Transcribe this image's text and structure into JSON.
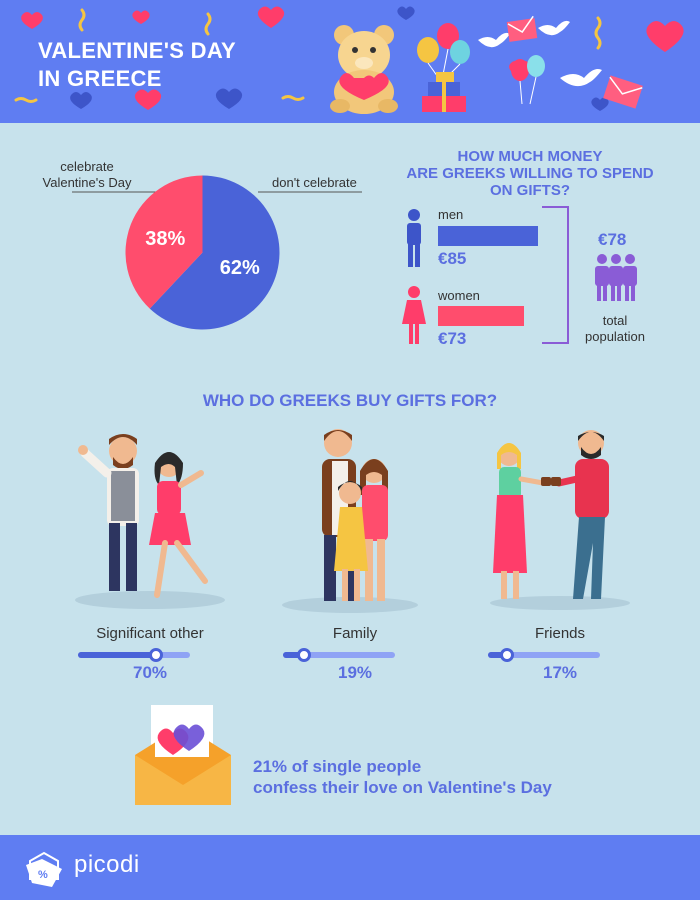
{
  "header": {
    "title_line1": "VALENTINE'S DAY",
    "title_line2": "IN GREECE",
    "background": "#5f7df2",
    "decor_icons": [
      "heart-icon",
      "confetti-icon",
      "teddy-bear-icon",
      "balloon-icon",
      "gift-icon",
      "dove-icon",
      "envelope-icon"
    ]
  },
  "chart_data": {
    "type": "pie",
    "slices": [
      {
        "label": "don't celebrate",
        "value": 62,
        "display": "62%",
        "color": "#4a63d8"
      },
      {
        "label": "celebrate Valentine's Day",
        "value": 38,
        "display": "38%",
        "color": "#ff4d6d"
      }
    ],
    "label_celebrate_line1": "celebrate",
    "label_celebrate_line2": "Valentine's Day",
    "label_dont": "don't celebrate"
  },
  "spending": {
    "title_line1": "HOW MUCH MONEY",
    "title_line2": "ARE GREEKS WILLING TO SPEND",
    "title_line3": "ON GIFTS?",
    "men": {
      "label": "men",
      "value": 85,
      "display": "€85",
      "color": "#4a63d8",
      "icon": "man-icon"
    },
    "women": {
      "label": "women",
      "value": 73,
      "display": "€73",
      "color": "#ff4d6d",
      "icon": "woman-icon"
    },
    "total": {
      "value": 78,
      "display": "€78",
      "label_line1": "total",
      "label_line2": "population",
      "icon": "group-icon"
    }
  },
  "gifts": {
    "title": "WHO DO GREEKS BUY GIFTS FOR?",
    "groups": [
      {
        "label": "Significant other",
        "value": 70,
        "display": "70%",
        "icon": "couple-illustration"
      },
      {
        "label": "Family",
        "value": 19,
        "display": "19%",
        "icon": "family-illustration"
      },
      {
        "label": "Friends",
        "value": 17,
        "display": "17%",
        "icon": "friends-illustration"
      }
    ]
  },
  "confession": {
    "line1": "21% of single people",
    "line2": "confess their love on Valentine's Day",
    "icon": "love-letter-icon"
  },
  "footer": {
    "brand": "picodi",
    "icon": "picodi-logo-icon"
  }
}
